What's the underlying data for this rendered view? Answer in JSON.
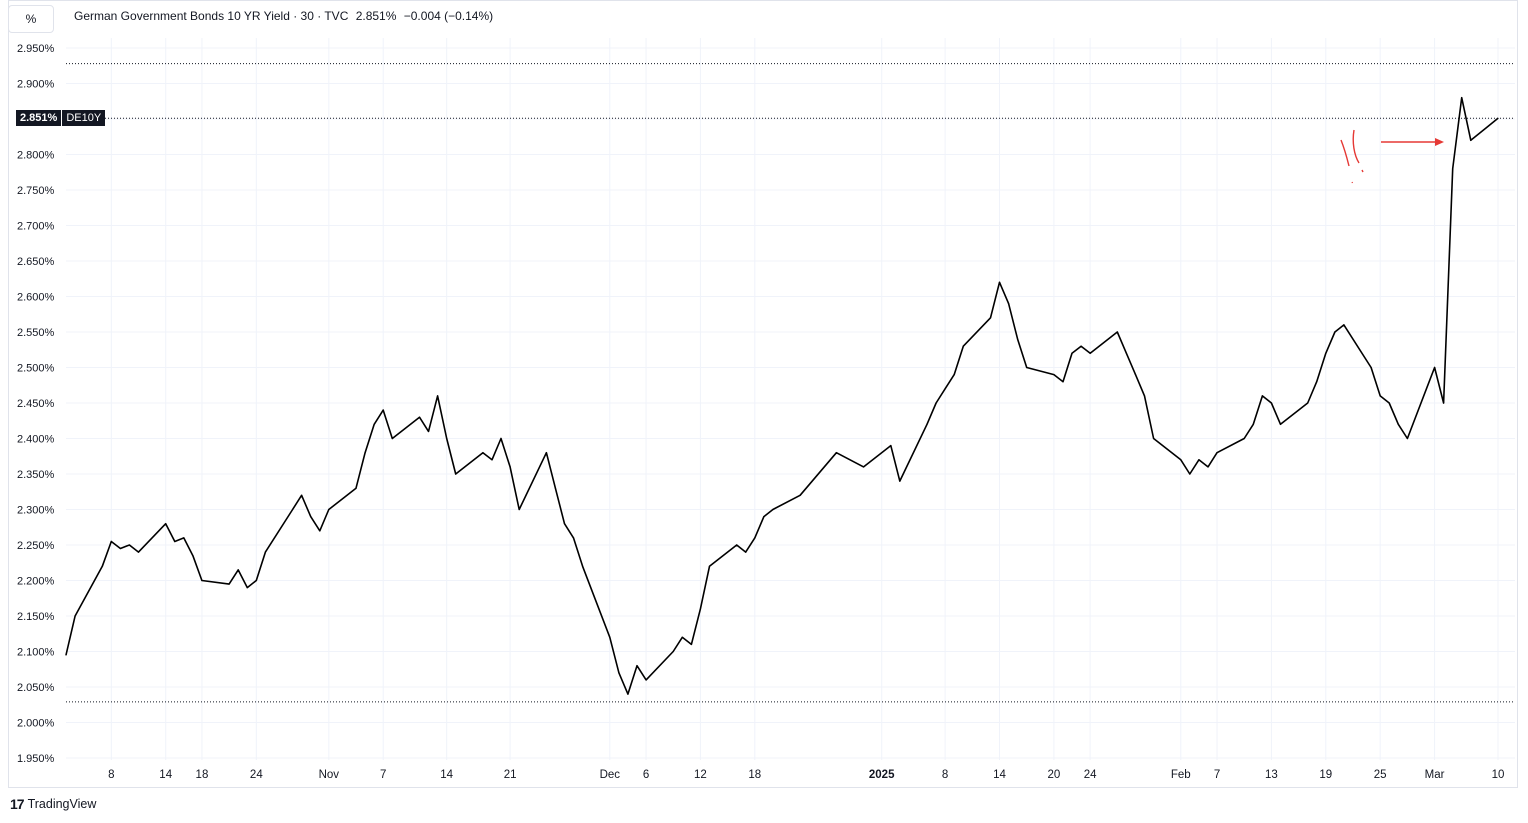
{
  "header": {
    "unit": "%",
    "title": "German Government Bonds 10 YR Yield · 30 · TVC",
    "last": "2.851%",
    "change": "−0.004 (−0.14%)"
  },
  "price_tag": {
    "value": "2.851%",
    "symbol": "DE10Y"
  },
  "footer": {
    "brand": "TradingView"
  },
  "colors": {
    "line": "#000000",
    "grid": "#f0f3fa",
    "annotation": "#e53935"
  },
  "chart_data": {
    "type": "line",
    "title": "German Government Bonds 10 YR Yield · 30 · TVC",
    "xlabel": "",
    "ylabel": "%",
    "ylim": [
      1.95,
      2.95
    ],
    "grid": true,
    "y_ticks": [
      "2.950%",
      "2.900%",
      "2.850%",
      "2.800%",
      "2.750%",
      "2.700%",
      "2.650%",
      "2.600%",
      "2.550%",
      "2.500%",
      "2.450%",
      "2.400%",
      "2.350%",
      "2.300%",
      "2.250%",
      "2.200%",
      "2.150%",
      "2.100%",
      "2.050%",
      "2.000%",
      "1.950%"
    ],
    "x_ticks": [
      {
        "label": "8",
        "date": "2024-10-08"
      },
      {
        "label": "14",
        "date": "2024-10-14"
      },
      {
        "label": "18",
        "date": "2024-10-18"
      },
      {
        "label": "24",
        "date": "2024-10-24"
      },
      {
        "label": "Nov",
        "date": "2024-11-01"
      },
      {
        "label": "7",
        "date": "2024-11-07"
      },
      {
        "label": "14",
        "date": "2024-11-14"
      },
      {
        "label": "21",
        "date": "2024-11-21"
      },
      {
        "label": "Dec",
        "date": "2024-12-02"
      },
      {
        "label": "6",
        "date": "2024-12-06"
      },
      {
        "label": "12",
        "date": "2024-12-12"
      },
      {
        "label": "18",
        "date": "2024-12-18"
      },
      {
        "label": "2025",
        "date": "2025-01-01",
        "bold": true
      },
      {
        "label": "8",
        "date": "2025-01-08"
      },
      {
        "label": "14",
        "date": "2025-01-14"
      },
      {
        "label": "20",
        "date": "2025-01-20"
      },
      {
        "label": "24",
        "date": "2025-01-24"
      },
      {
        "label": "Feb",
        "date": "2025-02-03"
      },
      {
        "label": "7",
        "date": "2025-02-07"
      },
      {
        "label": "13",
        "date": "2025-02-13"
      },
      {
        "label": "19",
        "date": "2025-02-19"
      },
      {
        "label": "25",
        "date": "2025-02-25"
      },
      {
        "label": "Mar",
        "date": "2025-03-03"
      },
      {
        "label": "10",
        "date": "2025-03-10"
      }
    ],
    "reference_lines": [
      {
        "value": 2.928,
        "style": "dotted"
      },
      {
        "value": 2.851,
        "style": "dotted"
      },
      {
        "value": 2.029,
        "style": "dotted"
      }
    ],
    "series": [
      {
        "x": [
          "2024-10-03",
          "2024-10-04",
          "2024-10-07",
          "2024-10-08",
          "2024-10-09",
          "2024-10-10",
          "2024-10-11",
          "2024-10-14",
          "2024-10-15",
          "2024-10-16",
          "2024-10-17",
          "2024-10-18",
          "2024-10-21",
          "2024-10-22",
          "2024-10-23",
          "2024-10-24",
          "2024-10-25",
          "2024-10-28",
          "2024-10-29",
          "2024-10-30",
          "2024-10-31",
          "2024-11-01",
          "2024-11-04",
          "2024-11-05",
          "2024-11-06",
          "2024-11-07",
          "2024-11-08",
          "2024-11-11",
          "2024-11-12",
          "2024-11-13",
          "2024-11-14",
          "2024-11-15",
          "2024-11-18",
          "2024-11-19",
          "2024-11-20",
          "2024-11-21",
          "2024-11-22",
          "2024-11-25",
          "2024-11-26",
          "2024-11-27",
          "2024-11-28",
          "2024-11-29",
          "2024-12-02",
          "2024-12-03",
          "2024-12-04",
          "2024-12-05",
          "2024-12-06",
          "2024-12-09",
          "2024-12-10",
          "2024-12-11",
          "2024-12-12",
          "2024-12-13",
          "2024-12-16",
          "2024-12-17",
          "2024-12-18",
          "2024-12-19",
          "2024-12-20",
          "2024-12-23",
          "2024-12-27",
          "2024-12-30",
          "2025-01-02",
          "2025-01-03",
          "2025-01-06",
          "2025-01-07",
          "2025-01-08",
          "2025-01-09",
          "2025-01-10",
          "2025-01-13",
          "2025-01-14",
          "2025-01-15",
          "2025-01-16",
          "2025-01-17",
          "2025-01-20",
          "2025-01-21",
          "2025-01-22",
          "2025-01-23",
          "2025-01-24",
          "2025-01-27",
          "2025-01-28",
          "2025-01-29",
          "2025-01-30",
          "2025-01-31",
          "2025-02-03",
          "2025-02-04",
          "2025-02-05",
          "2025-02-06",
          "2025-02-07",
          "2025-02-10",
          "2025-02-11",
          "2025-02-12",
          "2025-02-13",
          "2025-02-14",
          "2025-02-17",
          "2025-02-18",
          "2025-02-19",
          "2025-02-20",
          "2025-02-21",
          "2025-02-24",
          "2025-02-25",
          "2025-02-26",
          "2025-02-27",
          "2025-02-28",
          "2025-03-03",
          "2025-03-04",
          "2025-03-05",
          "2025-03-06",
          "2025-03-07",
          "2025-03-10"
        ],
        "values": [
          2.095,
          2.15,
          2.22,
          2.255,
          2.245,
          2.25,
          2.24,
          2.28,
          2.255,
          2.26,
          2.235,
          2.2,
          2.195,
          2.215,
          2.19,
          2.2,
          2.24,
          2.3,
          2.32,
          2.29,
          2.27,
          2.3,
          2.33,
          2.38,
          2.42,
          2.44,
          2.4,
          2.43,
          2.41,
          2.46,
          2.4,
          2.35,
          2.38,
          2.37,
          2.4,
          2.36,
          2.3,
          2.38,
          2.33,
          2.28,
          2.26,
          2.22,
          2.12,
          2.07,
          2.04,
          2.08,
          2.06,
          2.1,
          2.12,
          2.11,
          2.16,
          2.22,
          2.25,
          2.24,
          2.26,
          2.29,
          2.3,
          2.32,
          2.38,
          2.36,
          2.39,
          2.34,
          2.42,
          2.45,
          2.47,
          2.49,
          2.53,
          2.57,
          2.62,
          2.59,
          2.54,
          2.5,
          2.49,
          2.48,
          2.52,
          2.53,
          2.52,
          2.55,
          2.52,
          2.49,
          2.46,
          2.4,
          2.37,
          2.35,
          2.37,
          2.36,
          2.38,
          2.4,
          2.42,
          2.46,
          2.45,
          2.42,
          2.45,
          2.48,
          2.52,
          2.55,
          2.56,
          2.5,
          2.46,
          2.45,
          2.42,
          2.4,
          2.5,
          2.45,
          2.78,
          2.88,
          2.82,
          2.851
        ]
      }
    ]
  }
}
